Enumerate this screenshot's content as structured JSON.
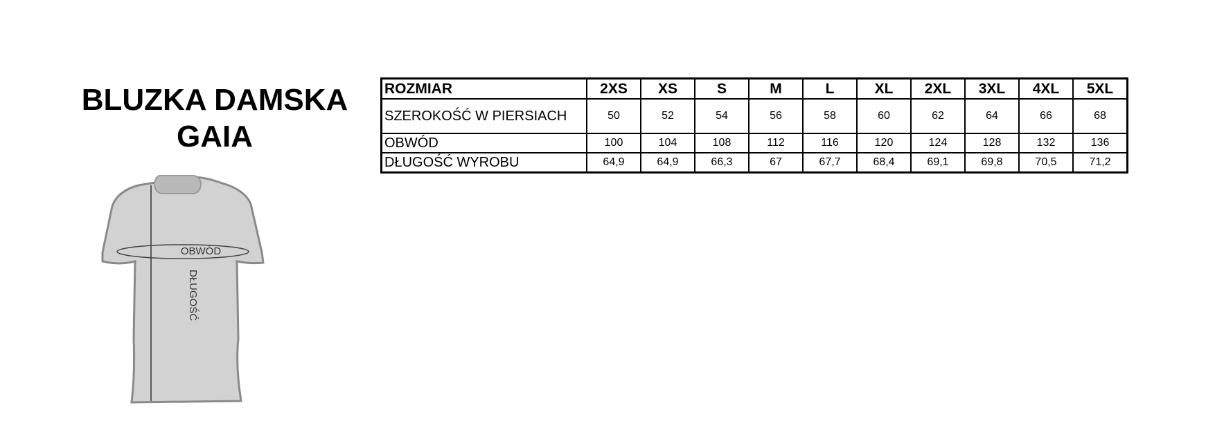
{
  "title": {
    "line1": "BLUZKA DAMSKA",
    "line2": "GAIA"
  },
  "diagram": {
    "chest_label": "OBWÓD",
    "length_label": "DŁUGOŚĆ"
  },
  "table": {
    "header": {
      "label": "ROZMIAR",
      "sizes": [
        "2XS",
        "XS",
        "S",
        "M",
        "L",
        "XL",
        "2XL",
        "3XL",
        "4XL",
        "5XL"
      ]
    },
    "rows": [
      {
        "label": "SZEROKOŚĆ W PIERSIACH",
        "values": [
          "50",
          "52",
          "54",
          "56",
          "58",
          "60",
          "62",
          "64",
          "66",
          "68"
        ]
      },
      {
        "label": "OBWÓD",
        "values": [
          "100",
          "104",
          "108",
          "112",
          "116",
          "120",
          "124",
          "128",
          "132",
          "136"
        ]
      },
      {
        "label": "DŁUGOŚĆ WYROBU",
        "values": [
          "64,9",
          "64,9",
          "66,3",
          "67",
          "67,7",
          "68,4",
          "69,1",
          "69,8",
          "70,5",
          "71,2"
        ]
      }
    ]
  }
}
